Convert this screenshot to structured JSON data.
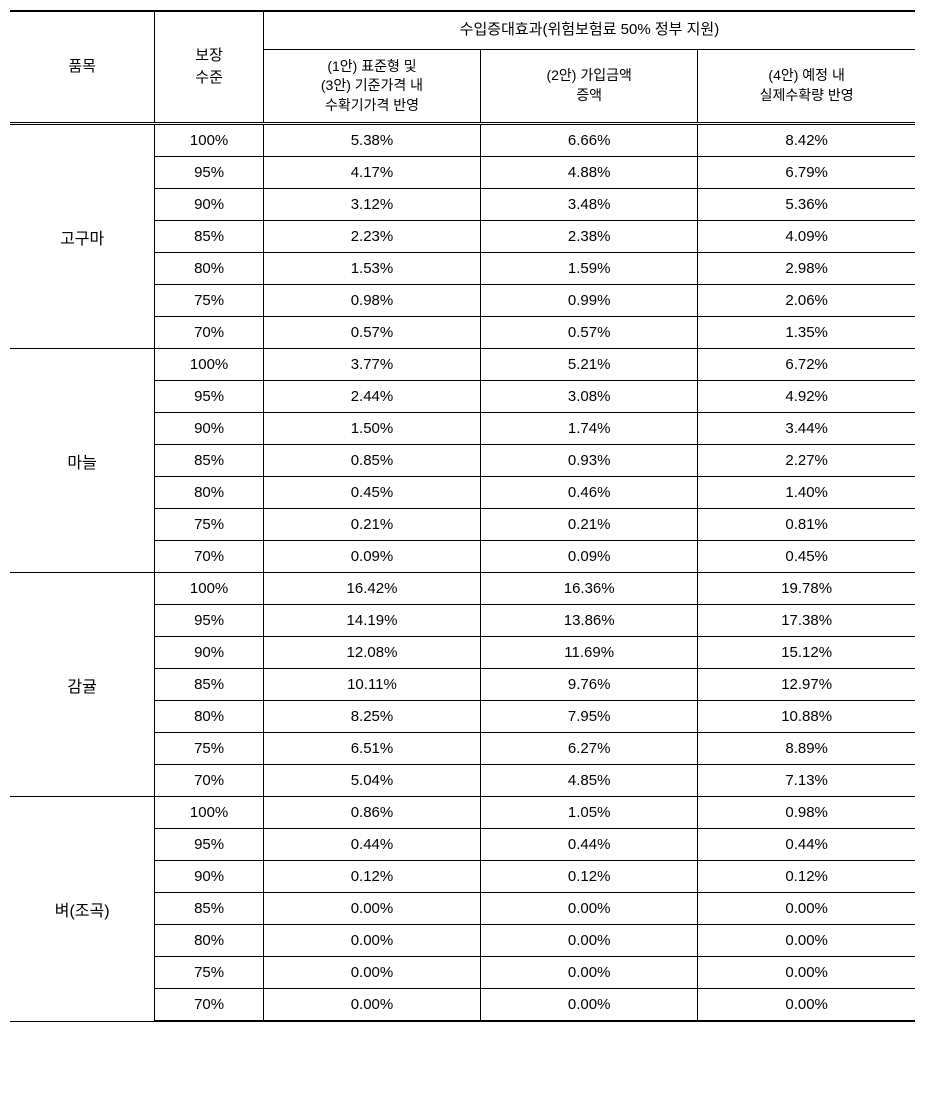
{
  "type": "table",
  "columns": {
    "item": "품목",
    "coverage": "보장\n수준",
    "effect_header": "수입증대효과(위험보험료 50% 정부 지원)",
    "plan1": "(1안) 표준형 및\n(3안) 기준가격 내\n수확기가격 반영",
    "plan2": "(2안) 가입금액\n증액",
    "plan4": "(4안) 예정 내\n실제수확량 반영"
  },
  "items": [
    {
      "name": "고구마",
      "rows": [
        {
          "coverage": "100%",
          "p1": "5.38%",
          "p2": "6.66%",
          "p4": "8.42%"
        },
        {
          "coverage": "95%",
          "p1": "4.17%",
          "p2": "4.88%",
          "p4": "6.79%"
        },
        {
          "coverage": "90%",
          "p1": "3.12%",
          "p2": "3.48%",
          "p4": "5.36%"
        },
        {
          "coverage": "85%",
          "p1": "2.23%",
          "p2": "2.38%",
          "p4": "4.09%"
        },
        {
          "coverage": "80%",
          "p1": "1.53%",
          "p2": "1.59%",
          "p4": "2.98%"
        },
        {
          "coverage": "75%",
          "p1": "0.98%",
          "p2": "0.99%",
          "p4": "2.06%"
        },
        {
          "coverage": "70%",
          "p1": "0.57%",
          "p2": "0.57%",
          "p4": "1.35%"
        }
      ]
    },
    {
      "name": "마늘",
      "rows": [
        {
          "coverage": "100%",
          "p1": "3.77%",
          "p2": "5.21%",
          "p4": "6.72%"
        },
        {
          "coverage": "95%",
          "p1": "2.44%",
          "p2": "3.08%",
          "p4": "4.92%"
        },
        {
          "coverage": "90%",
          "p1": "1.50%",
          "p2": "1.74%",
          "p4": "3.44%"
        },
        {
          "coverage": "85%",
          "p1": "0.85%",
          "p2": "0.93%",
          "p4": "2.27%"
        },
        {
          "coverage": "80%",
          "p1": "0.45%",
          "p2": "0.46%",
          "p4": "1.40%"
        },
        {
          "coverage": "75%",
          "p1": "0.21%",
          "p2": "0.21%",
          "p4": "0.81%"
        },
        {
          "coverage": "70%",
          "p1": "0.09%",
          "p2": "0.09%",
          "p4": "0.45%"
        }
      ]
    },
    {
      "name": "감귤",
      "rows": [
        {
          "coverage": "100%",
          "p1": "16.42%",
          "p2": "16.36%",
          "p4": "19.78%"
        },
        {
          "coverage": "95%",
          "p1": "14.19%",
          "p2": "13.86%",
          "p4": "17.38%"
        },
        {
          "coverage": "90%",
          "p1": "12.08%",
          "p2": "11.69%",
          "p4": "15.12%"
        },
        {
          "coverage": "85%",
          "p1": "10.11%",
          "p2": "9.76%",
          "p4": "12.97%"
        },
        {
          "coverage": "80%",
          "p1": "8.25%",
          "p2": "7.95%",
          "p4": "10.88%"
        },
        {
          "coverage": "75%",
          "p1": "6.51%",
          "p2": "6.27%",
          "p4": "8.89%"
        },
        {
          "coverage": "70%",
          "p1": "5.04%",
          "p2": "4.85%",
          "p4": "7.13%"
        }
      ]
    },
    {
      "name": "벼(조곡)",
      "rows": [
        {
          "coverage": "100%",
          "p1": "0.86%",
          "p2": "1.05%",
          "p4": "0.98%"
        },
        {
          "coverage": "95%",
          "p1": "0.44%",
          "p2": "0.44%",
          "p4": "0.44%"
        },
        {
          "coverage": "90%",
          "p1": "0.12%",
          "p2": "0.12%",
          "p4": "0.12%"
        },
        {
          "coverage": "85%",
          "p1": "0.00%",
          "p2": "0.00%",
          "p4": "0.00%"
        },
        {
          "coverage": "80%",
          "p1": "0.00%",
          "p2": "0.00%",
          "p4": "0.00%"
        },
        {
          "coverage": "75%",
          "p1": "0.00%",
          "p2": "0.00%",
          "p4": "0.00%"
        },
        {
          "coverage": "70%",
          "p1": "0.00%",
          "p2": "0.00%",
          "p4": "0.00%"
        }
      ]
    }
  ],
  "col_widths": [
    "16%",
    "12%",
    "24%",
    "24%",
    "24%"
  ],
  "background_color": "#ffffff",
  "border_color": "#000000",
  "font_size": 15
}
